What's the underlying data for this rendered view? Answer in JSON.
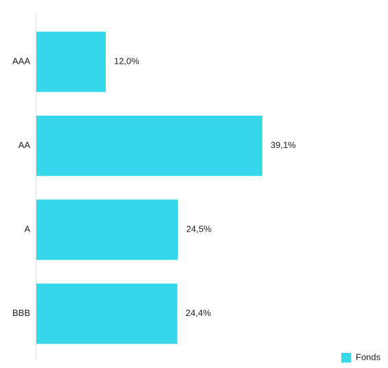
{
  "chart_data": {
    "type": "bar",
    "orientation": "horizontal",
    "categories": [
      "AAA",
      "AA",
      "A",
      "BBB"
    ],
    "series": [
      {
        "name": "Fonds",
        "color": "#36d7ea",
        "values": [
          12.0,
          39.1,
          24.5,
          24.4
        ],
        "value_labels": [
          "12,0%",
          "39,1%",
          "24,5%",
          "24,4%"
        ]
      }
    ],
    "legend": "bottom-right"
  }
}
